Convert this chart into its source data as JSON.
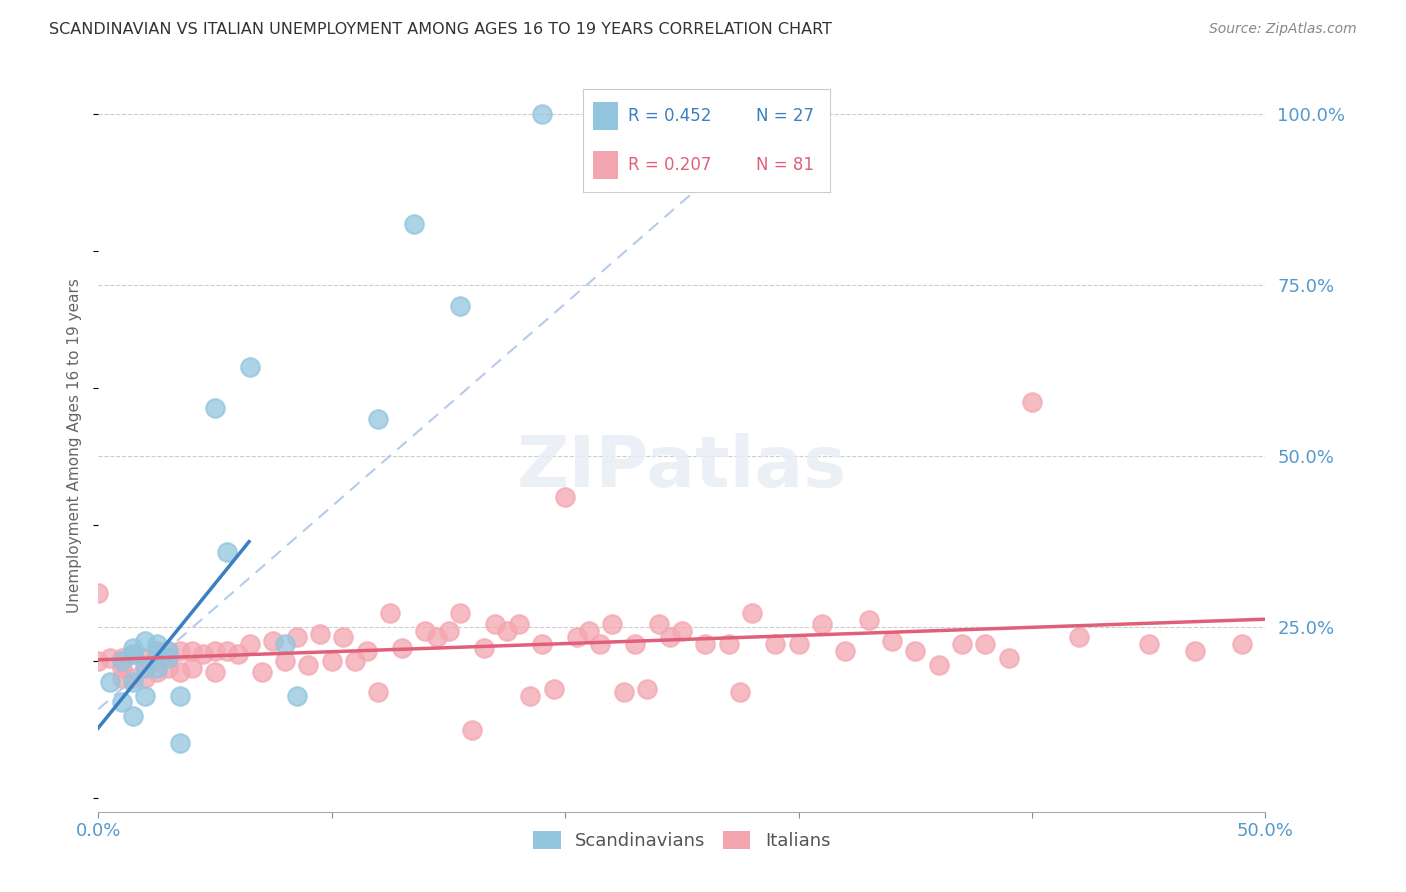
{
  "title": "SCANDINAVIAN VS ITALIAN UNEMPLOYMENT AMONG AGES 16 TO 19 YEARS CORRELATION CHART",
  "source": "Source: ZipAtlas.com",
  "ylabel": "Unemployment Among Ages 16 to 19 years",
  "xlim": [
    0.0,
    0.5
  ],
  "ylim": [
    -0.02,
    1.05
  ],
  "xticks": [
    0.0,
    0.1,
    0.2,
    0.3,
    0.4,
    0.5
  ],
  "xtick_labels": [
    "0.0%",
    "",
    "",
    "",
    "",
    "50.0%"
  ],
  "ytick_labels_right": [
    "100.0%",
    "75.0%",
    "50.0%",
    "25.0%"
  ],
  "ytick_vals_right": [
    1.0,
    0.75,
    0.5,
    0.25
  ],
  "blue_color": "#92c5de",
  "pink_color": "#f4a6b0",
  "trend_blue_color": "#3a7fc1",
  "trend_pink_color": "#e0607a",
  "trend_dash_color": "#aec6e8",
  "title_color": "#333333",
  "axis_label_color": "#5599cc",
  "grid_color": "#cccccc",
  "background_color": "#ffffff",
  "scandinavians_x": [
    0.005,
    0.01,
    0.01,
    0.015,
    0.015,
    0.015,
    0.015,
    0.02,
    0.02,
    0.02,
    0.025,
    0.025,
    0.025,
    0.03,
    0.03,
    0.035,
    0.035,
    0.05,
    0.055,
    0.065,
    0.08,
    0.085,
    0.12,
    0.135,
    0.155,
    0.19,
    0.22
  ],
  "scandinavians_y": [
    0.17,
    0.2,
    0.14,
    0.22,
    0.21,
    0.17,
    0.12,
    0.23,
    0.19,
    0.15,
    0.225,
    0.21,
    0.19,
    0.215,
    0.205,
    0.15,
    0.08,
    0.57,
    0.36,
    0.63,
    0.225,
    0.15,
    0.555,
    0.84,
    0.72,
    1.0,
    1.0
  ],
  "italians_x": [
    0.0,
    0.0,
    0.005,
    0.01,
    0.01,
    0.01,
    0.015,
    0.015,
    0.02,
    0.02,
    0.02,
    0.025,
    0.025,
    0.025,
    0.03,
    0.03,
    0.03,
    0.035,
    0.035,
    0.04,
    0.04,
    0.045,
    0.05,
    0.05,
    0.055,
    0.06,
    0.065,
    0.07,
    0.075,
    0.08,
    0.085,
    0.09,
    0.095,
    0.1,
    0.105,
    0.11,
    0.115,
    0.12,
    0.125,
    0.13,
    0.14,
    0.145,
    0.15,
    0.155,
    0.16,
    0.165,
    0.17,
    0.175,
    0.18,
    0.185,
    0.19,
    0.195,
    0.2,
    0.205,
    0.21,
    0.215,
    0.22,
    0.225,
    0.23,
    0.235,
    0.24,
    0.245,
    0.25,
    0.26,
    0.27,
    0.275,
    0.28,
    0.29,
    0.3,
    0.31,
    0.32,
    0.33,
    0.34,
    0.35,
    0.36,
    0.37,
    0.38,
    0.39,
    0.4,
    0.42,
    0.45,
    0.47,
    0.49
  ],
  "italians_y": [
    0.3,
    0.2,
    0.205,
    0.205,
    0.19,
    0.175,
    0.21,
    0.175,
    0.205,
    0.195,
    0.175,
    0.215,
    0.2,
    0.185,
    0.215,
    0.205,
    0.19,
    0.215,
    0.185,
    0.215,
    0.19,
    0.21,
    0.215,
    0.185,
    0.215,
    0.21,
    0.225,
    0.185,
    0.23,
    0.2,
    0.235,
    0.195,
    0.24,
    0.2,
    0.235,
    0.2,
    0.215,
    0.155,
    0.27,
    0.22,
    0.245,
    0.235,
    0.245,
    0.27,
    0.1,
    0.22,
    0.255,
    0.245,
    0.255,
    0.15,
    0.225,
    0.16,
    0.44,
    0.235,
    0.245,
    0.225,
    0.255,
    0.155,
    0.225,
    0.16,
    0.255,
    0.235,
    0.245,
    0.225,
    0.225,
    0.155,
    0.27,
    0.225,
    0.225,
    0.255,
    0.215,
    0.26,
    0.23,
    0.215,
    0.195,
    0.225,
    0.225,
    0.205,
    0.58,
    0.235,
    0.225,
    0.215,
    0.225
  ]
}
